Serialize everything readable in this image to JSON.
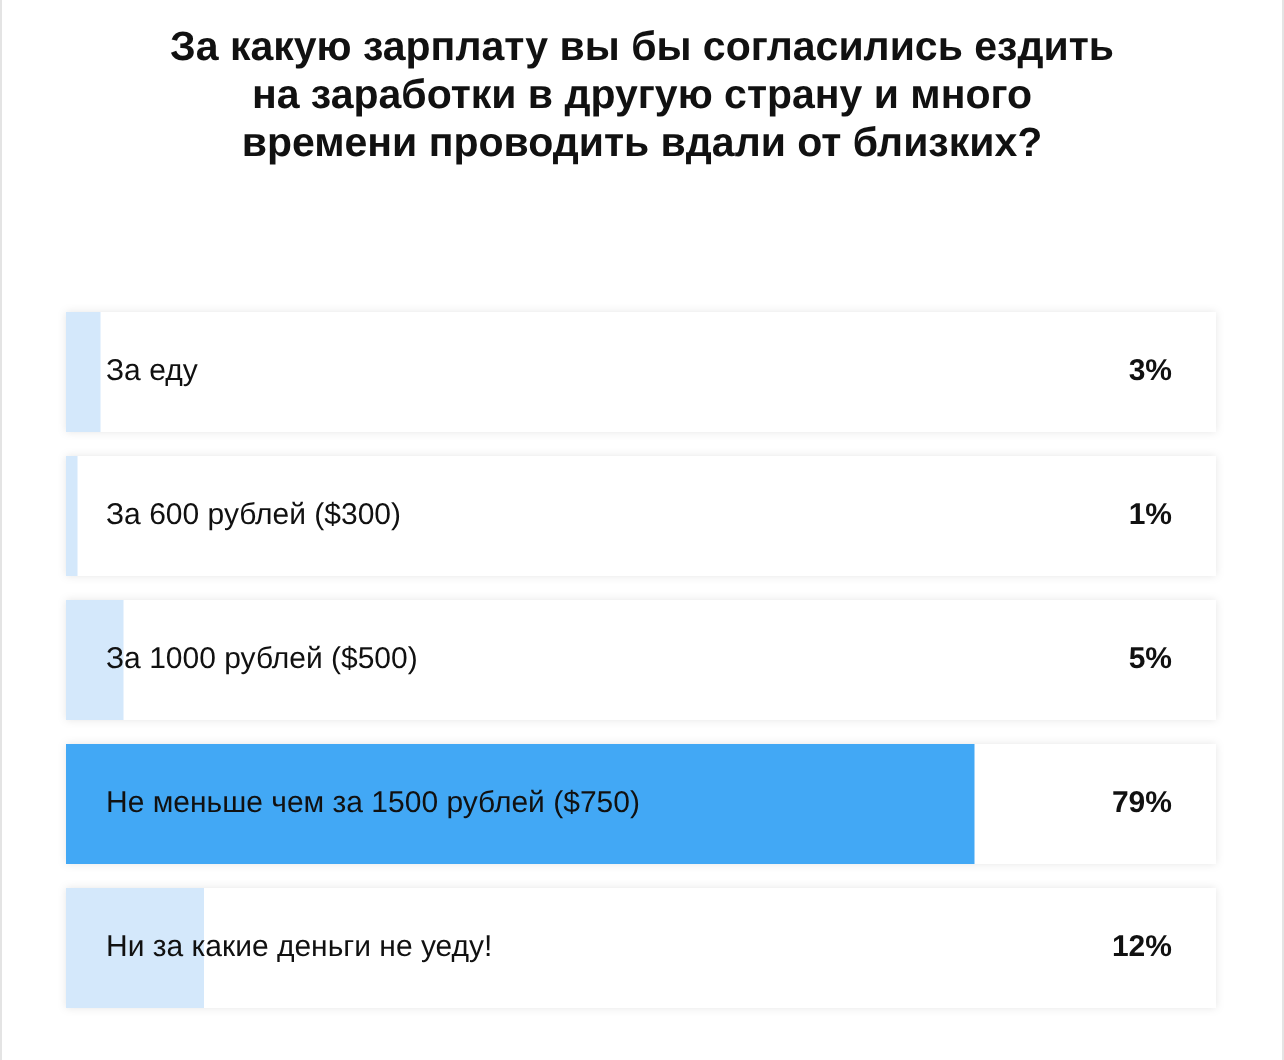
{
  "chart_data": {
    "type": "bar",
    "orientation": "horizontal",
    "title": "За какую зарплату вы бы согласились ездить на заработки в другую страну и много времени проводить вдали от близких?",
    "categories": [
      "За еду",
      "За 600 рублей ($300)",
      "За 1000 рублей ($500)",
      "Не меньше чем за 1500 рублей ($750)",
      "Ни за какие деньги не уеду!"
    ],
    "values": [
      3,
      1,
      5,
      79,
      12
    ],
    "colors": [
      "#d4e8fb",
      "#d4e8fb",
      "#d4e8fb",
      "#42a8f5",
      "#d4e8fb"
    ],
    "value_labels": [
      "3%",
      "1%",
      "5%",
      "79%",
      "12%"
    ],
    "tick_labels": false,
    "legend": false
  }
}
